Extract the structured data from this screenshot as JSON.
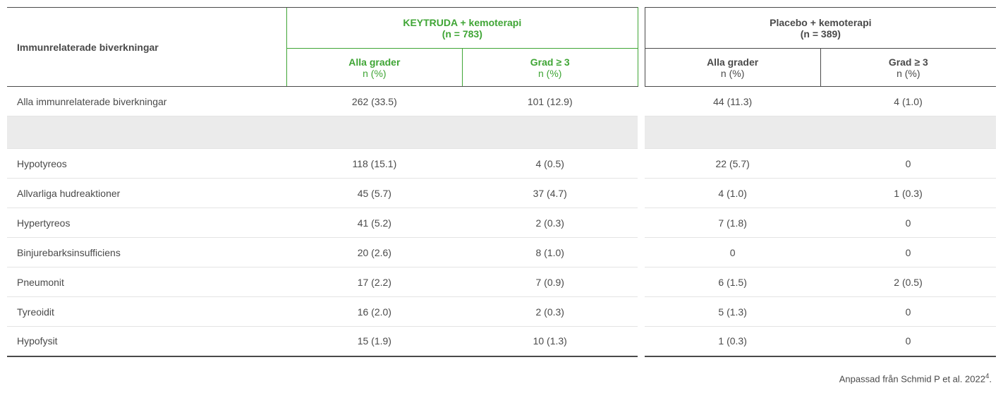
{
  "header": {
    "rowLabel": "Immunrelaterade biverkningar",
    "groups": [
      {
        "title": "KEYTRUDA + kemoterapi",
        "n": "(n = 783)",
        "highlight": true
      },
      {
        "title": "Placebo + kemoterapi",
        "n": "(n = 389)",
        "highlight": false
      }
    ],
    "subcols": {
      "allGradesBold": "Alla grader",
      "allGradesSub": "n (%)",
      "grade3Bold": "Grad ≥ 3",
      "grade3Sub": "n (%)"
    }
  },
  "rows": [
    {
      "label": "Alla immunrelaterade biverkningar",
      "k_all": "262 (33.5)",
      "k_g3": "101 (12.9)",
      "p_all": "44 (11.3)",
      "p_g3": "4 (1.0)"
    }
  ],
  "rows2": [
    {
      "label": "Hypotyreos",
      "k_all": "118 (15.1)",
      "k_g3": "4 (0.5)",
      "p_all": "22 (5.7)",
      "p_g3": "0"
    },
    {
      "label": "Allvarliga hudreaktioner",
      "k_all": "45 (5.7)",
      "k_g3": "37 (4.7)",
      "p_all": "4 (1.0)",
      "p_g3": "1 (0.3)"
    },
    {
      "label": "Hypertyreos",
      "k_all": "41 (5.2)",
      "k_g3": "2 (0.3)",
      "p_all": "7 (1.8)",
      "p_g3": "0"
    },
    {
      "label": "Binjurebarksinsufficiens",
      "k_all": "20 (2.6)",
      "k_g3": "8 (1.0)",
      "p_all": "0",
      "p_g3": "0"
    },
    {
      "label": "Pneumonit",
      "k_all": "17 (2.2)",
      "k_g3": "7 (0.9)",
      "p_all": "6 (1.5)",
      "p_g3": "2 (0.5)"
    },
    {
      "label": "Tyreoidit",
      "k_all": "16 (2.0)",
      "k_g3": "2 (0.3)",
      "p_all": "5 (1.3)",
      "p_g3": "0"
    },
    {
      "label": "Hypofysit",
      "k_all": "15 (1.9)",
      "k_g3": "10 (1.3)",
      "p_all": "1 (0.3)",
      "p_g3": "0"
    }
  ],
  "footnote": {
    "text": "Anpassad från Schmid P et al. 2022",
    "sup": "4",
    "suffix": "."
  },
  "style": {
    "accent": "#3fa535",
    "text": "#4a4a4a",
    "rowBorder": "#e4e4e4",
    "spacerBg": "#ebebeb"
  }
}
